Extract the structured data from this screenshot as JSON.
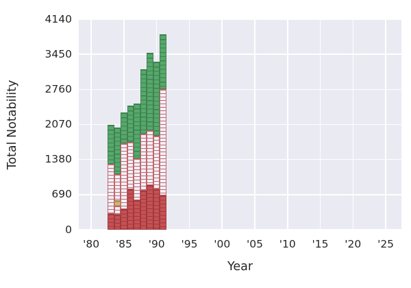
{
  "figure": {
    "background": "#ffffff",
    "plot_background": "#eaeaf2",
    "gridline_color": "#ffffff",
    "text_color": "#262626"
  },
  "chart_data": {
    "type": "bar",
    "stacked": true,
    "title": "",
    "xlabel": "Year",
    "ylabel": "Total Notability",
    "grid": true,
    "legend": "none",
    "xlim": [
      1978.1,
      2027.4
    ],
    "ylim": [
      0,
      4140
    ],
    "bar_width_years": 1,
    "x_ticks": [
      {
        "label": "'80",
        "year": 1980
      },
      {
        "label": "'85",
        "year": 1985
      },
      {
        "label": "'90",
        "year": 1990
      },
      {
        "label": "'95",
        "year": 1995
      },
      {
        "label": "'00",
        "year": 2000
      },
      {
        "label": "'05",
        "year": 2005
      },
      {
        "label": "'10",
        "year": 2010
      },
      {
        "label": "'15",
        "year": 2015
      },
      {
        "label": "'20",
        "year": 2020
      },
      {
        "label": "'25",
        "year": 2025
      }
    ],
    "y_ticks": [
      0,
      690,
      1380,
      2070,
      2760,
      3450,
      4140
    ],
    "segment_styles": {
      "red": {
        "fill": "#c65153",
        "line": "#9e3a3f",
        "period": 5.5
      },
      "hollow": {
        "fill": "#f1f0f7",
        "line": "#c2656b",
        "period": 5.0
      },
      "green": {
        "fill": "#57a86b",
        "line": "#3e8152",
        "period": 6.2
      },
      "tan": {
        "fill": "#cdba76",
        "line": "#ab9b4f",
        "period": 6.0
      }
    },
    "bars": [
      {
        "year": 1983,
        "total": 2060,
        "segments": [
          {
            "type": "red",
            "from": 0,
            "to": 310
          },
          {
            "type": "hollow",
            "from": 310,
            "to": 1300
          },
          {
            "type": "green",
            "from": 1300,
            "to": 2060
          }
        ]
      },
      {
        "year": 1984,
        "total": 2010,
        "segments": [
          {
            "type": "red",
            "from": 0,
            "to": 300
          },
          {
            "type": "hollow",
            "from": 300,
            "to": 470
          },
          {
            "type": "tan",
            "from": 470,
            "to": 560
          },
          {
            "type": "hollow",
            "from": 560,
            "to": 1090
          },
          {
            "type": "green",
            "from": 1090,
            "to": 2010
          }
        ]
      },
      {
        "year": 1985,
        "total": 2300,
        "segments": [
          {
            "type": "red",
            "from": 0,
            "to": 400
          },
          {
            "type": "hollow",
            "from": 400,
            "to": 1705
          },
          {
            "type": "green",
            "from": 1705,
            "to": 2300
          }
        ]
      },
      {
        "year": 1986,
        "total": 2440,
        "segments": [
          {
            "type": "red",
            "from": 0,
            "to": 800
          },
          {
            "type": "hollow",
            "from": 800,
            "to": 1730
          },
          {
            "type": "green",
            "from": 1730,
            "to": 2440
          }
        ]
      },
      {
        "year": 1987,
        "total": 2475,
        "segments": [
          {
            "type": "red",
            "from": 0,
            "to": 580
          },
          {
            "type": "hollow",
            "from": 580,
            "to": 1400
          },
          {
            "type": "green",
            "from": 1400,
            "to": 2475
          }
        ]
      },
      {
        "year": 1988,
        "total": 3150,
        "segments": [
          {
            "type": "red",
            "from": 0,
            "to": 770
          },
          {
            "type": "hollow",
            "from": 770,
            "to": 1890
          },
          {
            "type": "green",
            "from": 1890,
            "to": 3150
          }
        ]
      },
      {
        "year": 1989,
        "total": 3480,
        "segments": [
          {
            "type": "red",
            "from": 0,
            "to": 870
          },
          {
            "type": "hollow",
            "from": 870,
            "to": 1955
          },
          {
            "type": "green",
            "from": 1955,
            "to": 3480
          }
        ]
      },
      {
        "year": 1990,
        "total": 3300,
        "segments": [
          {
            "type": "red",
            "from": 0,
            "to": 790
          },
          {
            "type": "hollow",
            "from": 790,
            "to": 1850
          },
          {
            "type": "green",
            "from": 1850,
            "to": 3300
          }
        ]
      },
      {
        "year": 1991,
        "total": 3840,
        "segments": [
          {
            "type": "red",
            "from": 0,
            "to": 680
          },
          {
            "type": "hollow",
            "from": 680,
            "to": 2765
          },
          {
            "type": "green",
            "from": 2765,
            "to": 3840
          }
        ]
      }
    ]
  }
}
